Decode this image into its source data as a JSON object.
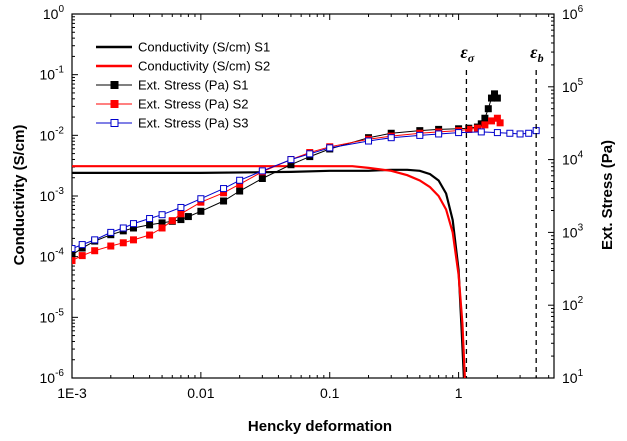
{
  "chart_data": {
    "type": "line",
    "xlabel": "Hencky deformation",
    "ylabel_left": "Conductivity (S/cm)",
    "ylabel_right": "Ext. Stress (Pa)",
    "x_scale": "log",
    "y_left_scale": "log",
    "y_right_scale": "log",
    "xlim": [
      0.001,
      5.5
    ],
    "ylim_left": [
      1e-06,
      1
    ],
    "ylim_right": [
      10,
      1000000
    ],
    "x_tick_labels": [
      "1E-3",
      "0.01",
      "0.1",
      "1"
    ],
    "y_left_tick_labels": [
      {
        "mant": "10",
        "exp": "-6"
      },
      {
        "mant": "10",
        "exp": "-5"
      },
      {
        "mant": "10",
        "exp": "-4"
      },
      {
        "mant": "10",
        "exp": "-3"
      },
      {
        "mant": "10",
        "exp": "-2"
      },
      {
        "mant": "10",
        "exp": "-1"
      },
      {
        "mant": "10",
        "exp": "0"
      }
    ],
    "y_right_tick_labels": [
      {
        "mant": "10",
        "exp": "1"
      },
      {
        "mant": "10",
        "exp": "2"
      },
      {
        "mant": "10",
        "exp": "3"
      },
      {
        "mant": "10",
        "exp": "4"
      },
      {
        "mant": "10",
        "exp": "5"
      },
      {
        "mant": "10",
        "exp": "6"
      }
    ],
    "legend_position": "top-left",
    "annotations": [
      {
        "symbol": "ε",
        "subscript": "σ",
        "x": 1.15
      },
      {
        "symbol": "ε",
        "subscript": "b",
        "x": 4.0
      }
    ],
    "series": [
      {
        "name": "Conductivity (S/cm) S1",
        "axis": "left",
        "color": "#000000",
        "marker": "none",
        "points": [
          [
            0.001,
            0.0024
          ],
          [
            0.01,
            0.0024
          ],
          [
            0.05,
            0.0025
          ],
          [
            0.1,
            0.0026
          ],
          [
            0.2,
            0.0026
          ],
          [
            0.3,
            0.0027
          ],
          [
            0.4,
            0.0027
          ],
          [
            0.5,
            0.0026
          ],
          [
            0.6,
            0.0023
          ],
          [
            0.7,
            0.0018
          ],
          [
            0.8,
            0.0011
          ],
          [
            0.9,
            0.0004
          ],
          [
            1.0,
            6e-05
          ],
          [
            1.05,
            8e-06
          ],
          [
            1.1,
            1e-06
          ]
        ]
      },
      {
        "name": "Conductivity (S/cm) S2",
        "axis": "left",
        "color": "#ff0000",
        "marker": "none",
        "points": [
          [
            0.001,
            0.0031
          ],
          [
            0.05,
            0.0031
          ],
          [
            0.1,
            0.0031
          ],
          [
            0.15,
            0.0031
          ],
          [
            0.2,
            0.0029
          ],
          [
            0.3,
            0.0026
          ],
          [
            0.4,
            0.0022
          ],
          [
            0.5,
            0.0018
          ],
          [
            0.6,
            0.0014
          ],
          [
            0.7,
            0.001
          ],
          [
            0.8,
            0.0006
          ],
          [
            0.9,
            0.00025
          ],
          [
            1.0,
            5e-05
          ],
          [
            1.07,
            8e-06
          ],
          [
            1.12,
            1e-06
          ]
        ]
      },
      {
        "name": "Ext. Stress (Pa) S1",
        "axis": "right",
        "color": "#000000",
        "marker": "filled-square",
        "points": [
          [
            0.001,
            490
          ],
          [
            0.0012,
            610
          ],
          [
            0.0015,
            760
          ],
          [
            0.002,
            930
          ],
          [
            0.0025,
            1050
          ],
          [
            0.003,
            1150
          ],
          [
            0.004,
            1270
          ],
          [
            0.005,
            1350
          ],
          [
            0.006,
            1420
          ],
          [
            0.007,
            1500
          ],
          [
            0.008,
            1650
          ],
          [
            0.01,
            1950
          ],
          [
            0.015,
            2700
          ],
          [
            0.02,
            3700
          ],
          [
            0.03,
            5500
          ],
          [
            0.05,
            8500
          ],
          [
            0.07,
            11000
          ],
          [
            0.1,
            14000
          ],
          [
            0.2,
            20000
          ],
          [
            0.3,
            23000
          ],
          [
            0.5,
            25000
          ],
          [
            0.7,
            26000
          ],
          [
            1.0,
            26500
          ],
          [
            1.2,
            27000
          ],
          [
            1.4,
            28000
          ],
          [
            1.5,
            31000
          ],
          [
            1.6,
            37000
          ],
          [
            1.7,
            50000
          ],
          [
            1.8,
            70000
          ],
          [
            1.9,
            80000
          ],
          [
            2.0,
            70000
          ]
        ]
      },
      {
        "name": "Ext. Stress (Pa) S2",
        "axis": "right",
        "color": "#ff0000",
        "marker": "filled-square",
        "points": [
          [
            0.001,
            410
          ],
          [
            0.0012,
            480
          ],
          [
            0.0015,
            560
          ],
          [
            0.002,
            650
          ],
          [
            0.0025,
            720
          ],
          [
            0.003,
            790
          ],
          [
            0.004,
            920
          ],
          [
            0.005,
            1150
          ],
          [
            0.006,
            1450
          ],
          [
            0.007,
            1800
          ],
          [
            0.01,
            2600
          ],
          [
            0.015,
            3500
          ],
          [
            0.02,
            4600
          ],
          [
            0.03,
            6800
          ],
          [
            0.05,
            10000
          ],
          [
            0.07,
            12500
          ],
          [
            0.1,
            15000
          ],
          [
            0.2,
            19000
          ],
          [
            0.3,
            21000
          ],
          [
            0.5,
            23000
          ],
          [
            0.7,
            24000
          ],
          [
            1.0,
            25000
          ],
          [
            1.2,
            26000
          ],
          [
            1.4,
            27000
          ],
          [
            1.6,
            30000
          ],
          [
            1.8,
            34000
          ],
          [
            2.0,
            37000
          ],
          [
            2.1,
            32000
          ]
        ]
      },
      {
        "name": "Ext. Stress (Pa) S3",
        "axis": "right",
        "color": "#0000cc",
        "marker": "open-square",
        "points": [
          [
            0.001,
            600
          ],
          [
            0.0012,
            680
          ],
          [
            0.0015,
            790
          ],
          [
            0.002,
            1000
          ],
          [
            0.0025,
            1150
          ],
          [
            0.003,
            1320
          ],
          [
            0.004,
            1550
          ],
          [
            0.005,
            1750
          ],
          [
            0.007,
            2200
          ],
          [
            0.01,
            2900
          ],
          [
            0.015,
            4000
          ],
          [
            0.02,
            5200
          ],
          [
            0.03,
            7000
          ],
          [
            0.05,
            10000
          ],
          [
            0.07,
            12000
          ],
          [
            0.1,
            14500
          ],
          [
            0.2,
            18000
          ],
          [
            0.3,
            20000
          ],
          [
            0.5,
            21500
          ],
          [
            0.7,
            22500
          ],
          [
            1.0,
            23500
          ],
          [
            1.5,
            24000
          ],
          [
            2.0,
            23500
          ],
          [
            2.5,
            23000
          ],
          [
            3.0,
            22500
          ],
          [
            3.5,
            23000
          ],
          [
            4.0,
            25000
          ]
        ]
      }
    ]
  }
}
